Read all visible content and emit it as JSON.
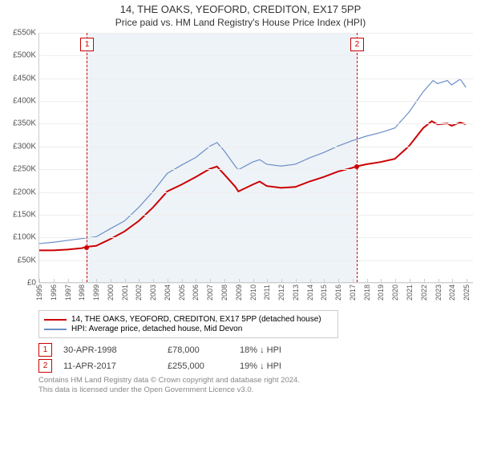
{
  "titles": {
    "line1": "14, THE OAKS, YEOFORD, CREDITON, EX17 5PP",
    "line2": "Price paid vs. HM Land Registry's House Price Index (HPI)"
  },
  "chart": {
    "type": "line",
    "background_color": "#ffffff",
    "shaded_band_color": "#eef3f8",
    "grid_color": "#eeeeee",
    "axis_color": "#cccccc",
    "xlim": [
      1995,
      2025.5
    ],
    "ylim": [
      0,
      550000
    ],
    "ytick_step": 50000,
    "yticks": [
      "£0",
      "£50K",
      "£100K",
      "£150K",
      "£200K",
      "£250K",
      "£300K",
      "£350K",
      "£400K",
      "£450K",
      "£500K",
      "£550K"
    ],
    "xticks": [
      1995,
      1996,
      1997,
      1998,
      1999,
      2000,
      2001,
      2002,
      2003,
      2004,
      2005,
      2006,
      2007,
      2008,
      2009,
      2010,
      2011,
      2012,
      2013,
      2014,
      2015,
      2016,
      2017,
      2018,
      2019,
      2020,
      2021,
      2022,
      2023,
      2024,
      2025
    ],
    "shaded_band_x": [
      1998.33,
      2017.28
    ],
    "label_fontsize": 10,
    "series": {
      "price_paid": {
        "label": "14, THE OAKS, YEOFORD, CREDITON, EX17 5PP (detached house)",
        "color": "#cc0000",
        "line_width": 2,
        "points": [
          [
            1995,
            70000
          ],
          [
            1996,
            70000
          ],
          [
            1997,
            72000
          ],
          [
            1998,
            75000
          ],
          [
            1998.33,
            78000
          ],
          [
            1999,
            80000
          ],
          [
            2000,
            95000
          ],
          [
            2001,
            112000
          ],
          [
            2002,
            135000
          ],
          [
            2003,
            165000
          ],
          [
            2004,
            200000
          ],
          [
            2005,
            215000
          ],
          [
            2006,
            232000
          ],
          [
            2007,
            250000
          ],
          [
            2007.5,
            255000
          ],
          [
            2008,
            238000
          ],
          [
            2008.8,
            210000
          ],
          [
            2009,
            200000
          ],
          [
            2010,
            215000
          ],
          [
            2010.5,
            222000
          ],
          [
            2011,
            212000
          ],
          [
            2012,
            208000
          ],
          [
            2013,
            210000
          ],
          [
            2014,
            222000
          ],
          [
            2015,
            232000
          ],
          [
            2016,
            244000
          ],
          [
            2017,
            252000
          ],
          [
            2017.28,
            255000
          ],
          [
            2018,
            260000
          ],
          [
            2019,
            265000
          ],
          [
            2020,
            272000
          ],
          [
            2021,
            300000
          ],
          [
            2022,
            340000
          ],
          [
            2022.6,
            355000
          ],
          [
            2023,
            348000
          ],
          [
            2023.7,
            350000
          ],
          [
            2024,
            345000
          ],
          [
            2024.6,
            352000
          ],
          [
            2025,
            348000
          ]
        ]
      },
      "hpi": {
        "label": "HPI: Average price, detached house, Mid Devon",
        "color": "#6a8fc7",
        "line_width": 1.2,
        "points": [
          [
            1995,
            85000
          ],
          [
            1996,
            88000
          ],
          [
            1997,
            92000
          ],
          [
            1998,
            96000
          ],
          [
            1999,
            100000
          ],
          [
            2000,
            118000
          ],
          [
            2001,
            135000
          ],
          [
            2002,
            165000
          ],
          [
            2003,
            200000
          ],
          [
            2004,
            240000
          ],
          [
            2005,
            258000
          ],
          [
            2006,
            275000
          ],
          [
            2007,
            300000
          ],
          [
            2007.5,
            308000
          ],
          [
            2008,
            290000
          ],
          [
            2008.8,
            255000
          ],
          [
            2009,
            248000
          ],
          [
            2010,
            265000
          ],
          [
            2010.5,
            270000
          ],
          [
            2011,
            260000
          ],
          [
            2012,
            256000
          ],
          [
            2013,
            260000
          ],
          [
            2014,
            274000
          ],
          [
            2015,
            286000
          ],
          [
            2016,
            300000
          ],
          [
            2017,
            312000
          ],
          [
            2018,
            322000
          ],
          [
            2019,
            330000
          ],
          [
            2020,
            340000
          ],
          [
            2021,
            375000
          ],
          [
            2022,
            420000
          ],
          [
            2022.7,
            445000
          ],
          [
            2023,
            438000
          ],
          [
            2023.7,
            445000
          ],
          [
            2024,
            435000
          ],
          [
            2024.6,
            448000
          ],
          [
            2025,
            430000
          ]
        ]
      }
    },
    "markers": [
      {
        "n": "1",
        "x": 1998.33,
        "y": 78000,
        "date": "30-APR-1998",
        "price": "£78,000",
        "diff": "18% ↓ HPI"
      },
      {
        "n": "2",
        "x": 2017.28,
        "y": 255000,
        "date": "11-APR-2017",
        "price": "£255,000",
        "diff": "19% ↓ HPI"
      }
    ],
    "marker_box_color": "#cc0000",
    "vline_color": "#cc0000"
  },
  "legend": {
    "series1": "14, THE OAKS, YEOFORD, CREDITON, EX17 5PP (detached house)",
    "series2": "HPI: Average price, detached house, Mid Devon"
  },
  "attribution": {
    "line1": "Contains HM Land Registry data © Crown copyright and database right 2024.",
    "line2": "This data is licensed under the Open Government Licence v3.0."
  }
}
